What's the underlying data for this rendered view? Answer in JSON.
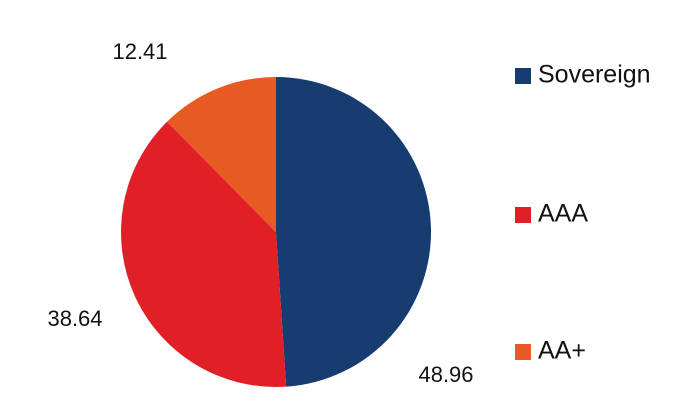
{
  "chart_data": {
    "type": "pie",
    "categories": [
      "Sovereign",
      "AAA",
      "AA+"
    ],
    "values": [
      48.96,
      38.64,
      12.41
    ],
    "colors": [
      "#173c70",
      "#e01f26",
      "#e85a24"
    ]
  }
}
